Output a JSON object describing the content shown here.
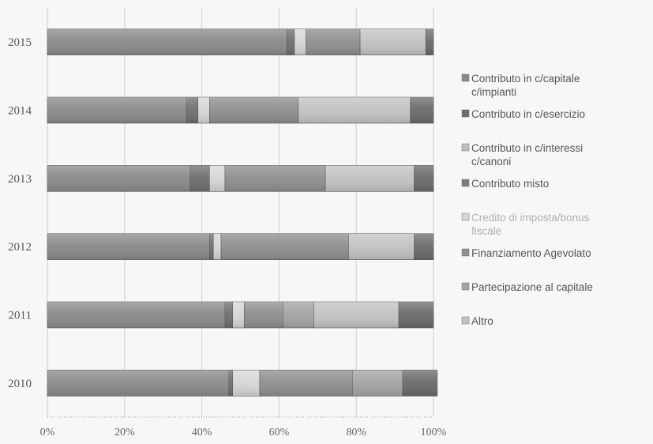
{
  "chart_data": {
    "type": "bar",
    "orientation": "horizontal",
    "stacked": "percent",
    "categories": [
      "2010",
      "2011",
      "2012",
      "2013",
      "2014",
      "2015"
    ],
    "xlim": [
      0,
      100
    ],
    "x_ticks": [
      "0%",
      "20%",
      "40%",
      "60%",
      "80%",
      "100%"
    ],
    "grid": true,
    "legend_position": "right",
    "series": [
      {
        "name": "Contributo in c/capitale c/impianti",
        "color": "#8a8a8a",
        "values": [
          47,
          46,
          42,
          37,
          36,
          62
        ]
      },
      {
        "name": "Contributo in c/esercizio",
        "color": "#6e6e6e",
        "values": [
          1,
          2,
          1,
          5,
          3,
          2
        ]
      },
      {
        "name": "Contributo in c/interessi c/canoni",
        "color": "#bdbdbd",
        "values": [
          0,
          0,
          0,
          0,
          0,
          0
        ]
      },
      {
        "name": "Contributo misto",
        "color": "#7c7c7c",
        "values": [
          0,
          0,
          0,
          0,
          0,
          0
        ]
      },
      {
        "name": "Credito di imposta/bonus fiscale",
        "color": "#d6d6d6",
        "values": [
          7,
          3,
          2,
          4,
          3,
          3
        ]
      },
      {
        "name": "Finanziamento Agevolato",
        "color": "#8e8e8e",
        "values": [
          24,
          10,
          33,
          26,
          23,
          14
        ]
      },
      {
        "name": "Partecipazione al capitale",
        "color": "#a3a3a3",
        "values": [
          13,
          8,
          0,
          0,
          0,
          0
        ]
      },
      {
        "name": "Altro",
        "color": "#c2c2c2",
        "values": [
          0,
          22,
          17,
          23,
          29,
          17
        ]
      },
      {
        "name": "",
        "color": "#6a6a6a",
        "values": [
          9,
          9,
          5,
          5,
          6,
          2
        ]
      }
    ]
  }
}
